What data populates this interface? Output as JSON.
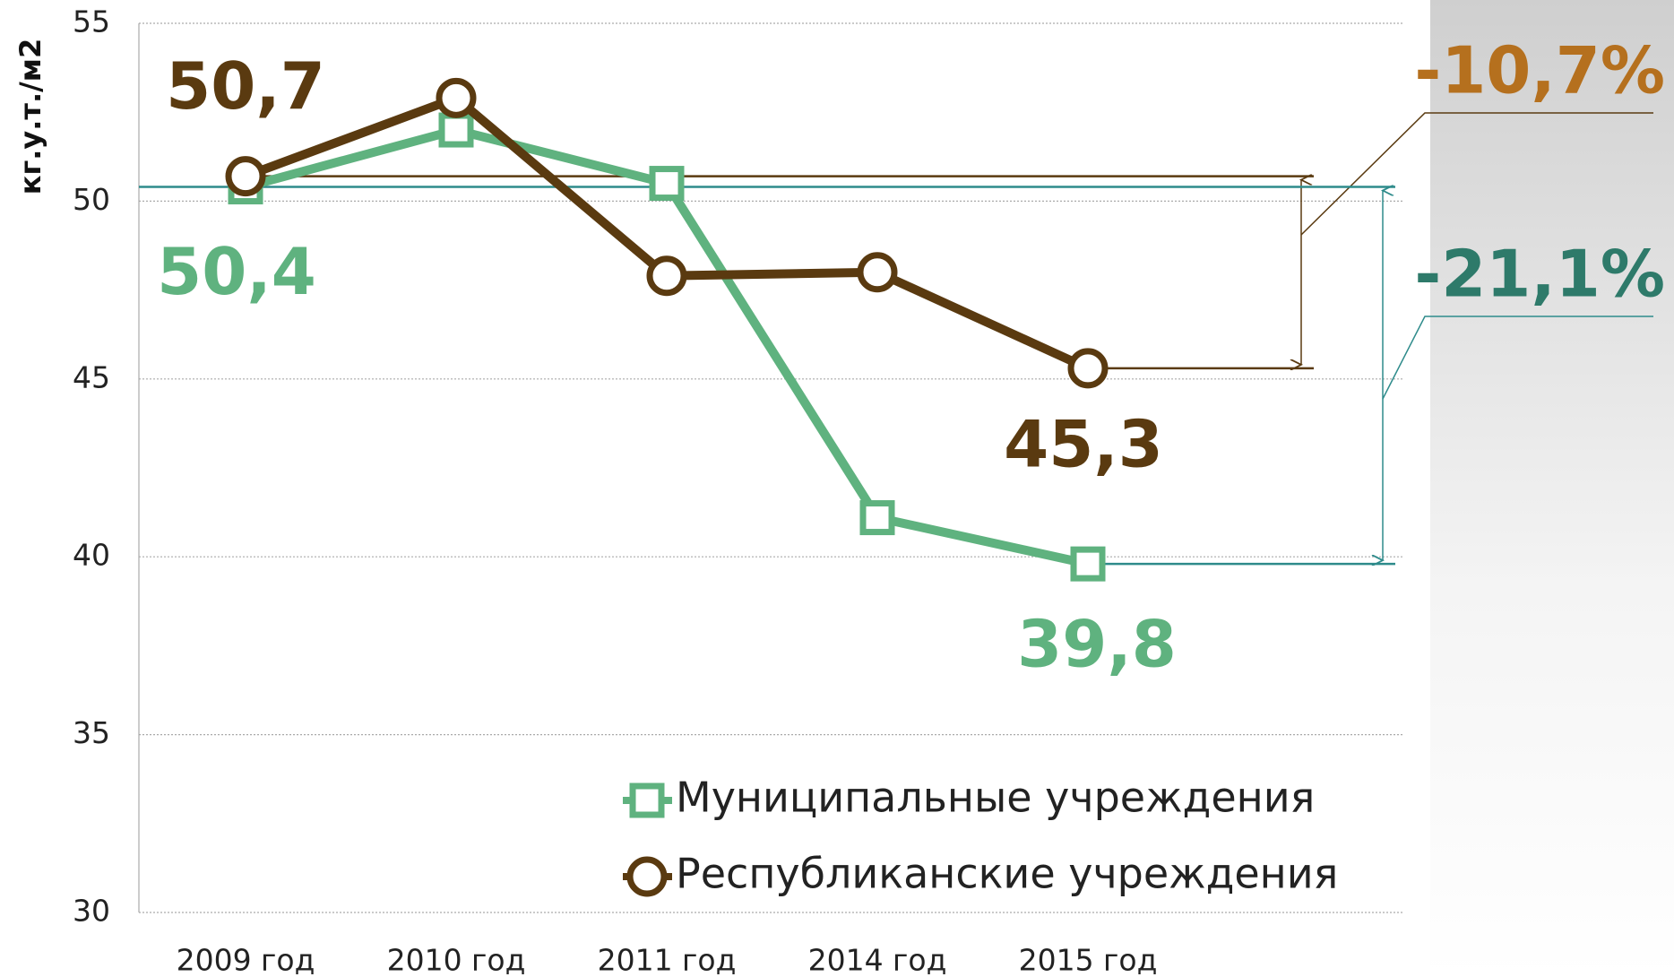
{
  "chart_data": {
    "type": "line",
    "y_label": "кг.у.т./м2",
    "categories": [
      "2009 год",
      "2010 год",
      "2011 год",
      "2014 год",
      "2015 год"
    ],
    "series": [
      {
        "name": "Муниципальные учреждения",
        "color": "#5fb27f",
        "marker": "square",
        "values": [
          50.4,
          52.0,
          50.5,
          41.1,
          39.8
        ],
        "value_labels": [
          "50,4",
          null,
          null,
          null,
          "39,8"
        ]
      },
      {
        "name": "Республиканские учреждения",
        "color": "#5a3a10",
        "marker": "circle",
        "values": [
          50.7,
          52.9,
          47.9,
          48.0,
          45.3
        ],
        "value_labels": [
          "50,7",
          null,
          null,
          null,
          "45,3"
        ]
      }
    ],
    "annotations": [
      {
        "text": "-10,7%",
        "color": "#b5701e"
      },
      {
        "text": "-21,1%",
        "color": "#2e7a6a"
      }
    ],
    "ylim": [
      30,
      55
    ],
    "yticks": [
      30,
      35,
      40,
      45,
      50,
      55
    ],
    "grid": true
  }
}
